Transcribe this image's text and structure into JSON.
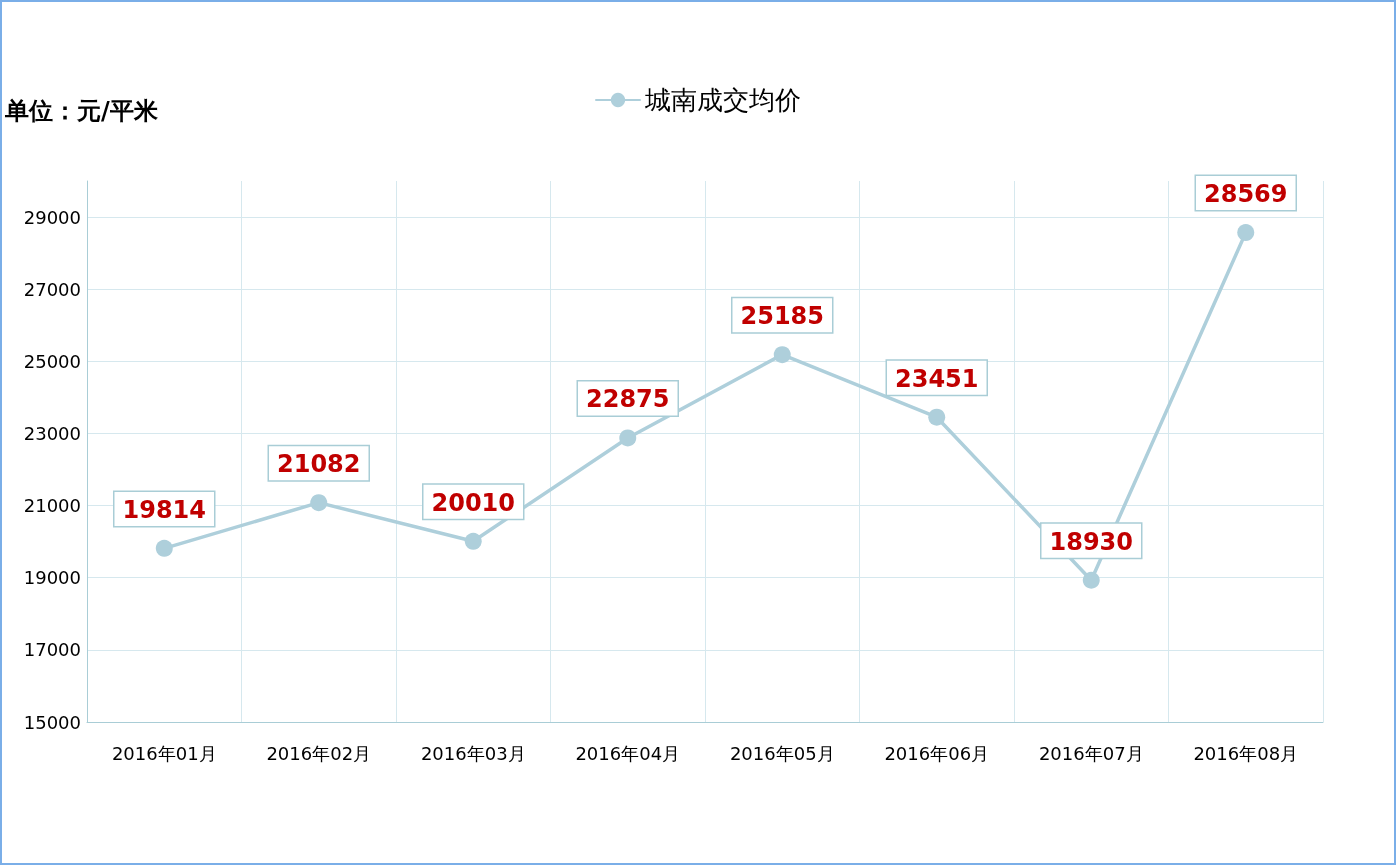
{
  "chart_data": {
    "type": "line",
    "ylabel": "单位：元/平米",
    "categories": [
      "2016年01月",
      "2016年02月",
      "2016年03月",
      "2016年04月",
      "2016年05月",
      "2016年06月",
      "2016年07月",
      "2016年08月"
    ],
    "series": [
      {
        "name": "城南成交均价",
        "color": "#aecfdb",
        "values": [
          19814,
          21082,
          20010,
          22875,
          25185,
          23451,
          18930,
          28569
        ]
      }
    ],
    "ylim": [
      15000,
      30000
    ],
    "yticks": [
      15000,
      17000,
      19000,
      21000,
      23000,
      25000,
      27000,
      29000
    ],
    "grid": true,
    "legend": "top",
    "marker": "circle",
    "line_style": "solid",
    "data_labels": true
  }
}
